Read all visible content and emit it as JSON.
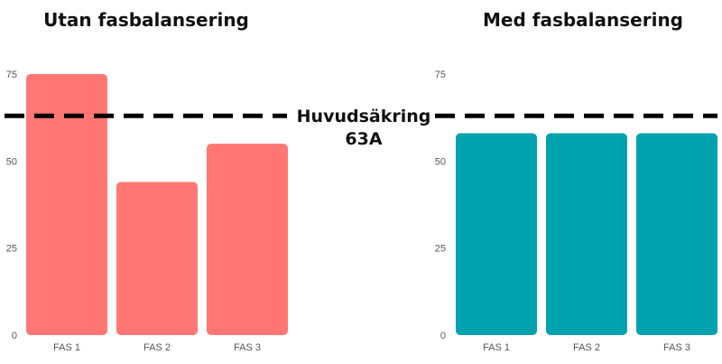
{
  "chart_data": [
    {
      "type": "bar",
      "title": "Utan fasbalansering",
      "categories": [
        "FAS 1",
        "FAS 2",
        "FAS 3"
      ],
      "values": [
        75,
        44,
        55
      ],
      "ylim": [
        0,
        75
      ],
      "yticks": [
        0,
        25,
        50,
        75
      ],
      "color": "#ff7675",
      "grid": false
    },
    {
      "type": "bar",
      "title": "Med fasbalansering",
      "categories": [
        "FAS 1",
        "FAS 2",
        "FAS 3"
      ],
      "values": [
        58,
        58,
        58
      ],
      "ylim": [
        0,
        75
      ],
      "yticks": [
        0,
        25,
        50,
        75
      ],
      "color": "#00a3ad",
      "grid": false
    }
  ],
  "reference_line": {
    "value": 63,
    "label_line1": "Huvudsäkring",
    "label_line2": "63A",
    "style": "dashed",
    "color": "#000000"
  }
}
